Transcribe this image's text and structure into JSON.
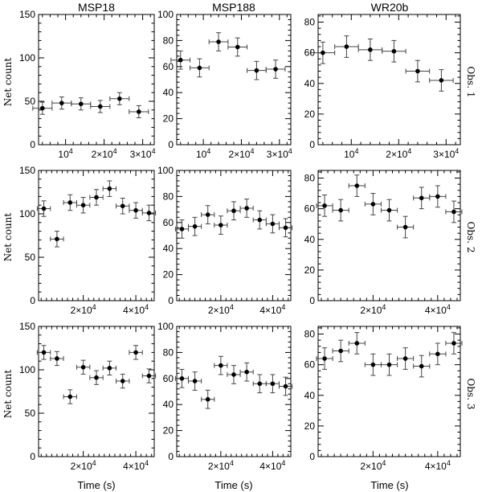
{
  "figure": {
    "columns": [
      "MSP18",
      "MSP188",
      "WR20b"
    ],
    "rows": [
      "Obs. 1",
      "Obs. 2",
      "Obs. 3"
    ],
    "ylabel": "Net count",
    "xlabel": "Time (s)"
  },
  "chart_data": [
    {
      "type": "scatter",
      "obs": "Obs. 1",
      "source": "MSP18",
      "xlim": [
        3000,
        33000
      ],
      "ylim": [
        0,
        150
      ],
      "xticks": [
        {
          "v": 10000,
          "label": "10^4"
        },
        {
          "v": 20000,
          "label": "2×10^4"
        },
        {
          "v": 30000,
          "label": "3×10^4"
        }
      ],
      "yticks": [
        0,
        50,
        100,
        150
      ],
      "x": [
        4000,
        9000,
        14000,
        19000,
        24000,
        29000
      ],
      "y": [
        42,
        48,
        47,
        44,
        53,
        38
      ],
      "xerr": 2500,
      "yerr": 7
    },
    {
      "type": "scatter",
      "obs": "Obs. 1",
      "source": "MSP188",
      "xlim": [
        3000,
        33000
      ],
      "ylim": [
        0,
        100
      ],
      "xticks": [
        {
          "v": 10000,
          "label": "10^4"
        },
        {
          "v": 20000,
          "label": "2×10^4"
        },
        {
          "v": 30000,
          "label": "3×10^4"
        }
      ],
      "yticks": [
        0,
        20,
        40,
        60,
        80,
        100
      ],
      "x": [
        4000,
        9000,
        14000,
        19000,
        24000,
        29000
      ],
      "y": [
        65,
        59,
        79,
        75,
        57,
        58
      ],
      "xerr": 2500,
      "yerr": 7
    },
    {
      "type": "scatter",
      "obs": "Obs. 1",
      "source": "WR20b",
      "xlim": [
        3000,
        33000
      ],
      "ylim": [
        0,
        85
      ],
      "xticks": [
        {
          "v": 10000,
          "label": "10^4"
        },
        {
          "v": 20000,
          "label": "2×10^4"
        },
        {
          "v": 30000,
          "label": "3×10^4"
        }
      ],
      "yticks": [
        0,
        20,
        40,
        60,
        80
      ],
      "x": [
        4000,
        9000,
        14000,
        19000,
        24000,
        29000
      ],
      "y": [
        60,
        64,
        62,
        61,
        48,
        42
      ],
      "xerr": 2500,
      "yerr": 7
    },
    {
      "type": "scatter",
      "obs": "Obs. 2",
      "source": "MSP18",
      "xlim": [
        3000,
        47000
      ],
      "ylim": [
        0,
        150
      ],
      "xticks": [
        {
          "v": 20000,
          "label": "2×10^4"
        },
        {
          "v": 40000,
          "label": "4×10^4"
        }
      ],
      "yticks": [
        0,
        50,
        100,
        150
      ],
      "x": [
        5000,
        10000,
        15000,
        20000,
        25000,
        30000,
        35000,
        40000,
        45000
      ],
      "y": [
        106,
        71,
        113,
        110,
        119,
        129,
        109,
        104,
        101
      ],
      "xerr": 2500,
      "yerr": 9
    },
    {
      "type": "scatter",
      "obs": "Obs. 2",
      "source": "MSP188",
      "xlim": [
        3000,
        47000
      ],
      "ylim": [
        0,
        100
      ],
      "xticks": [
        {
          "v": 20000,
          "label": "2×10^4"
        },
        {
          "v": 40000,
          "label": "4×10^4"
        }
      ],
      "yticks": [
        0,
        20,
        40,
        60,
        80,
        100
      ],
      "x": [
        5000,
        10000,
        15000,
        20000,
        25000,
        30000,
        35000,
        40000,
        45000
      ],
      "y": [
        55,
        57,
        66,
        58,
        69,
        71,
        62,
        59,
        56
      ],
      "xerr": 2500,
      "yerr": 7
    },
    {
      "type": "scatter",
      "obs": "Obs. 2",
      "source": "WR20b",
      "xlim": [
        3000,
        47000
      ],
      "ylim": [
        0,
        85
      ],
      "xticks": [
        {
          "v": 20000,
          "label": "2×10^4"
        },
        {
          "v": 40000,
          "label": "4×10^4"
        }
      ],
      "yticks": [
        0,
        20,
        40,
        60,
        80
      ],
      "x": [
        5000,
        10000,
        15000,
        20000,
        25000,
        30000,
        35000,
        40000,
        45000
      ],
      "y": [
        62,
        59,
        75,
        63,
        59,
        48,
        67,
        68,
        58
      ],
      "xerr": 2500,
      "yerr": 7
    },
    {
      "type": "scatter",
      "obs": "Obs. 3",
      "source": "MSP18",
      "xlim": [
        3000,
        47000
      ],
      "ylim": [
        0,
        150
      ],
      "xticks": [
        {
          "v": 20000,
          "label": "2×10^4"
        },
        {
          "v": 40000,
          "label": "4×10^4"
        }
      ],
      "yticks": [
        0,
        50,
        100,
        150
      ],
      "x": [
        5000,
        10000,
        15000,
        20000,
        25000,
        30000,
        35000,
        40000,
        45000
      ],
      "y": [
        120,
        113,
        69,
        103,
        91,
        102,
        87,
        120,
        93
      ],
      "xerr": 2500,
      "yerr": 8
    },
    {
      "type": "scatter",
      "obs": "Obs. 3",
      "source": "MSP188",
      "xlim": [
        3000,
        47000
      ],
      "ylim": [
        0,
        100
      ],
      "xticks": [
        {
          "v": 20000,
          "label": "2×10^4"
        },
        {
          "v": 40000,
          "label": "4×10^4"
        }
      ],
      "yticks": [
        0,
        20,
        40,
        60,
        80,
        100
      ],
      "x": [
        5000,
        10000,
        15000,
        20000,
        25000,
        30000,
        35000,
        40000,
        45000
      ],
      "y": [
        60,
        58,
        44,
        70,
        63,
        65,
        56,
        56,
        54
      ],
      "xerr": 2500,
      "yerr": 7
    },
    {
      "type": "scatter",
      "obs": "Obs. 3",
      "source": "WR20b",
      "xlim": [
        3000,
        47000
      ],
      "ylim": [
        0,
        85
      ],
      "xticks": [
        {
          "v": 20000,
          "label": "2×10^4"
        },
        {
          "v": 40000,
          "label": "4×10^4"
        }
      ],
      "yticks": [
        0,
        20,
        40,
        60,
        80
      ],
      "x": [
        5000,
        10000,
        15000,
        20000,
        25000,
        30000,
        35000,
        40000,
        45000
      ],
      "y": [
        64,
        69,
        74,
        60,
        60,
        64,
        59,
        67,
        74
      ],
      "xerr": 2500,
      "yerr": 7
    }
  ]
}
